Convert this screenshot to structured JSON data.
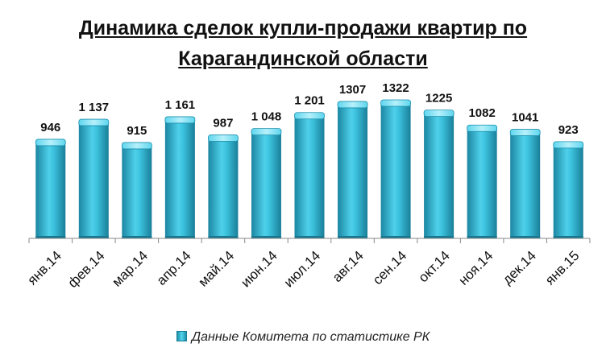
{
  "title_line1": "Динамика сделок купли-продажи квартир по",
  "title_line2": "Карагандинской области",
  "chart_data": {
    "type": "bar",
    "categories": [
      "янв.14",
      "фев.14",
      "мар.14",
      "апр.14",
      "май.14",
      "июн.14",
      "июл.14",
      "авг.14",
      "сен.14",
      "окт.14",
      "ноя.14",
      "дек.14",
      "янв.15"
    ],
    "values": [
      946,
      1137,
      915,
      1161,
      987,
      1048,
      1201,
      1307,
      1322,
      1225,
      1082,
      1041,
      923
    ],
    "data_labels": [
      "946",
      "1 137",
      "915",
      "1 161",
      "987",
      "1 048",
      "1 201",
      "1307",
      "1322",
      "1225",
      "1082",
      "1041",
      "923"
    ],
    "series": [
      {
        "name": "Данные Комитета по статистике РК"
      }
    ],
    "legend_position": "bottom",
    "bar_color": "#2bb6d4",
    "ylim": [
      0,
      1400
    ],
    "grid": false
  }
}
